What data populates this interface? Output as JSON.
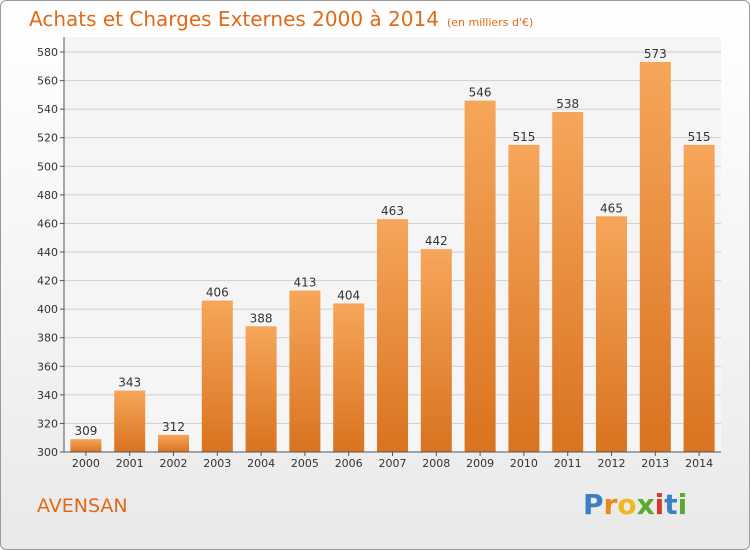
{
  "header": {
    "title": "Achats et Charges Externes 2000 à 2014",
    "subtitle": "(en milliers d'€)"
  },
  "footer": {
    "city": "AVENSAN",
    "brand": "Proxiti"
  },
  "colors": {
    "accent": "#e06a18",
    "bar_top": "#f6a65a",
    "bar_bottom": "#d9731f",
    "brand_p": "#3b7fc4",
    "brand_r": "#e8891c",
    "brand_o": "#f0b81c",
    "brand_x": "#5aaa2c",
    "brand_i": "#d63a2a",
    "brand_t": "#3b7fc4",
    "brand_i2": "#5aaa2c"
  },
  "chart_data": {
    "type": "bar",
    "title": "Achats et Charges Externes 2000 à 2014",
    "subtitle": "(en milliers d'€)",
    "categories": [
      "2000",
      "2001",
      "2002",
      "2003",
      "2004",
      "2005",
      "2006",
      "2007",
      "2008",
      "2009",
      "2010",
      "2011",
      "2012",
      "2013",
      "2014"
    ],
    "values": [
      309,
      343,
      312,
      406,
      388,
      413,
      404,
      463,
      442,
      546,
      515,
      538,
      465,
      573,
      515
    ],
    "ylim": [
      300,
      580
    ],
    "yticks": [
      300,
      320,
      340,
      360,
      380,
      400,
      420,
      440,
      460,
      480,
      500,
      520,
      540,
      560,
      580
    ],
    "grid": true,
    "xlabel": "",
    "ylabel": ""
  }
}
